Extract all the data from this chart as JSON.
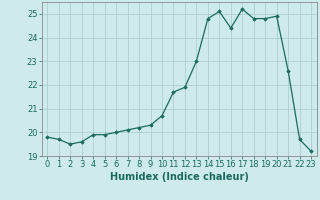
{
  "x": [
    0,
    1,
    2,
    3,
    4,
    5,
    6,
    7,
    8,
    9,
    10,
    11,
    12,
    13,
    14,
    15,
    16,
    17,
    18,
    19,
    20,
    21,
    22,
    23
  ],
  "y": [
    19.8,
    19.7,
    19.5,
    19.6,
    19.9,
    19.9,
    20.0,
    20.1,
    20.2,
    20.3,
    20.7,
    21.7,
    21.9,
    23.0,
    24.8,
    25.1,
    24.4,
    25.2,
    24.8,
    24.8,
    24.9,
    22.6,
    19.7,
    19.2
  ],
  "line_color": "#1a6b5e",
  "marker": "D",
  "marker_size": 1.8,
  "linewidth": 0.9,
  "xlabel": "Humidex (Indice chaleur)",
  "xlabel_fontsize": 7,
  "tick_fontsize": 6,
  "ylim": [
    19,
    25.5
  ],
  "xlim": [
    -0.5,
    23.5
  ],
  "yticks": [
    19,
    20,
    21,
    22,
    23,
    24,
    25
  ],
  "xticks": [
    0,
    1,
    2,
    3,
    4,
    5,
    6,
    7,
    8,
    9,
    10,
    11,
    12,
    13,
    14,
    15,
    16,
    17,
    18,
    19,
    20,
    21,
    22,
    23
  ],
  "bg_color": "#ceeaea",
  "grid_color": "#a8c8c8",
  "grid_linewidth": 0.5,
  "spine_color": "#888888"
}
